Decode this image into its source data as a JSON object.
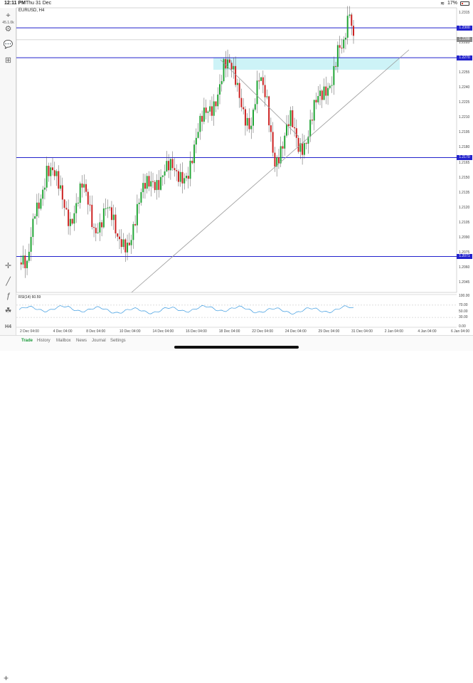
{
  "status_bar": {
    "time": "12:11 PM",
    "date": "Thu 31 Dec",
    "battery": "17%",
    "battery_level": 0.17
  },
  "sidebar": {
    "tools": [
      {
        "icon": "crosshair-zoom-icon",
        "label": "45.1.0k"
      },
      {
        "icon": "brush-settings-icon",
        "label": ""
      },
      {
        "icon": "chat-bubble-icon",
        "label": ""
      },
      {
        "icon": "add-indicator-icon",
        "label": ""
      }
    ],
    "bottom_tools": [
      {
        "icon": "crosshair-icon",
        "label": ""
      },
      {
        "icon": "drawing-line-icon",
        "label": ""
      },
      {
        "icon": "function-icon",
        "label": ""
      },
      {
        "icon": "indicators-icon",
        "label": ""
      },
      {
        "icon": "timeframe-icon",
        "label": "H4"
      }
    ]
  },
  "chart": {
    "symbol": "EURUSD, H4",
    "price_labels": [
      "1.2315",
      "1.2300",
      "1.2285",
      "1.2270",
      "1.2255",
      "1.2240",
      "1.2225",
      "1.2210",
      "1.2195",
      "1.2180",
      "1.2165",
      "1.2150",
      "1.2135",
      "1.2120",
      "1.2105",
      "1.2090",
      "1.2075",
      "1.2060",
      "1.2045"
    ],
    "price_tags": [
      {
        "text": "1.2300",
        "price": 1.23,
        "color": "#2222cc"
      },
      {
        "text": "1.2288",
        "price": 1.2288,
        "color": "#888888"
      },
      {
        "text": "1.2270",
        "price": 1.227,
        "color": "#2222cc"
      },
      {
        "text": "1.2170",
        "price": 1.217,
        "color": "#2222cc"
      },
      {
        "text": "1.2071",
        "price": 1.2071,
        "color": "#2222cc"
      }
    ],
    "horizontal_lines": [
      1.23,
      1.227,
      1.217,
      1.2071
    ],
    "current_price": 1.2288,
    "time_labels": [
      "2 Dec 04:00",
      "4 Dec 04:00",
      "8 Dec 04:00",
      "10 Dec 04:00",
      "14 Dec 04:00",
      "16 Dec 04:00",
      "18 Dec 04:00",
      "22 Dec 04:00",
      "24 Dec 04:00",
      "29 Dec 04:00",
      "31 Dec 04:00",
      "2 Jan 04:00",
      "4 Jan 04:00",
      "6 Jan 04:00"
    ],
    "rsi": {
      "label": "RSI(14) 60.59",
      "axis_labels": [
        "100.00",
        "70.00",
        "50.00",
        "30.00",
        "0.00"
      ]
    },
    "colors": {
      "bull": "#22a536",
      "bear": "#cc2222",
      "level_line": "#2222cc",
      "zone": "#cdf3f7",
      "rsi_line": "#3a9ae0"
    }
  },
  "bottom_nav": {
    "tabs": [
      {
        "label": "Trade",
        "active": true
      },
      {
        "label": "History",
        "active": false
      },
      {
        "label": "Mailbox",
        "active": false
      },
      {
        "label": "News",
        "active": false
      },
      {
        "label": "Journal",
        "active": false
      },
      {
        "label": "Settings",
        "active": false
      }
    ]
  }
}
